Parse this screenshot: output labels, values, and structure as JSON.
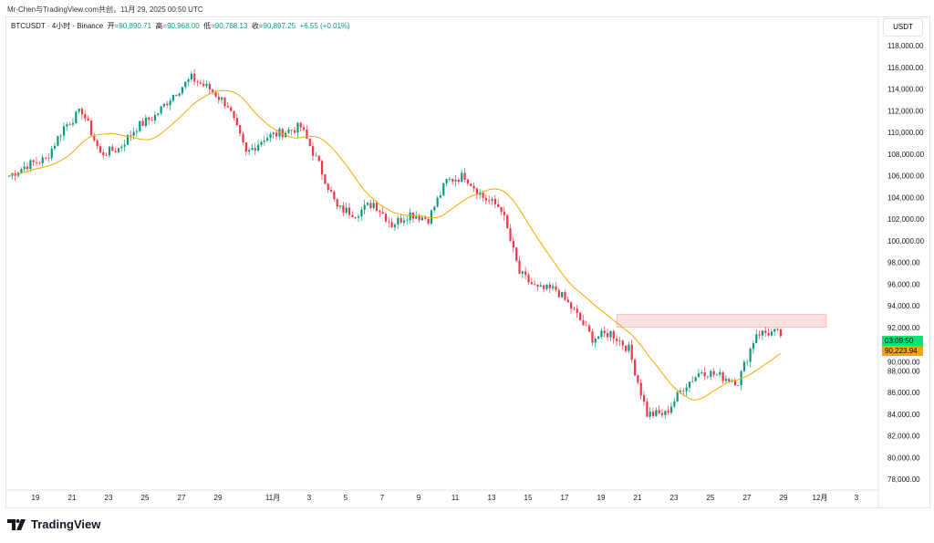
{
  "credit": "Mr-Chen与TradingView.com共创，11月 29, 2025 00:50 UTC",
  "legend": {
    "symbol": "BTCUSDT · 4小时 · Binance",
    "open_label": "开",
    "open": "=90,890.71",
    "high_label": "高",
    "high": "=90,968.00",
    "low_label": "低",
    "low": "=90,768.13",
    "close_label": "收",
    "close": "=90,897.25",
    "change": "+6.55 (+0.01%)"
  },
  "price_axis": {
    "unit": "USDT",
    "countdown": "03:09:50",
    "ma_value": "90,223.94",
    "countdown_color": "#00e676",
    "ma_color": "#f7a600"
  },
  "logo": "TradingView",
  "colors": {
    "up": "#089981",
    "down": "#f23645",
    "ma": "#f7a600",
    "zone": "#f8c9cd"
  },
  "chart_data": {
    "type": "candlestick",
    "interval": "4h",
    "y_ticks": [
      "78,000.00",
      "80,000.00",
      "82,000.00",
      "84,000.00",
      "86,000.00",
      "88,000.00",
      "90,000.00",
      "92,000.00",
      "94,000.00",
      "96,000.00",
      "98,000.00",
      "100,000.00",
      "102,000.00",
      "104,000.00",
      "106,000.00",
      "108,000.00",
      "110,000.00",
      "112,000.00",
      "114,000.00",
      "116,000.00",
      "118,000.00"
    ],
    "x_ticks": [
      "19",
      "21",
      "23",
      "25",
      "27",
      "29",
      "11月",
      "3",
      "5",
      "7",
      "9",
      "11",
      "13",
      "15",
      "17",
      "19",
      "21",
      "23",
      "25",
      "27",
      "29",
      "12月",
      "3"
    ],
    "ylim": [
      77000,
      119000
    ],
    "approx_daily_closes": {
      "dates": [
        "10-17",
        "10-18",
        "10-19",
        "10-20",
        "10-21",
        "10-22",
        "10-23",
        "10-24",
        "10-25",
        "10-26",
        "10-27",
        "10-28",
        "10-29",
        "10-30",
        "10-31",
        "11-01",
        "11-02",
        "11-03",
        "11-04",
        "11-05",
        "11-06",
        "11-07",
        "11-08",
        "11-09",
        "11-10",
        "11-11",
        "11-12",
        "11-13",
        "11-14",
        "11-15",
        "11-16",
        "11-17",
        "11-18",
        "11-19",
        "11-20",
        "11-21",
        "11-22",
        "11-23",
        "11-24",
        "11-25",
        "11-26",
        "11-27",
        "11-28",
        "11-29"
      ],
      "values": [
        106000,
        107000,
        107500,
        110500,
        112000,
        108000,
        108500,
        110500,
        111500,
        113500,
        115000,
        114000,
        112500,
        108000,
        109500,
        110000,
        110500,
        107000,
        103000,
        102500,
        103500,
        101500,
        102500,
        102000,
        105500,
        106000,
        104000,
        103000,
        97000,
        95500,
        95500,
        93500,
        91000,
        91500,
        90000,
        84000,
        84000,
        86500,
        88000,
        87500,
        87000,
        91500,
        91500,
        90900
      ]
    },
    "zone": {
      "from": "11-20",
      "to": "12-03",
      "low": 92000,
      "high": 93200
    },
    "moving_average": "orange"
  }
}
